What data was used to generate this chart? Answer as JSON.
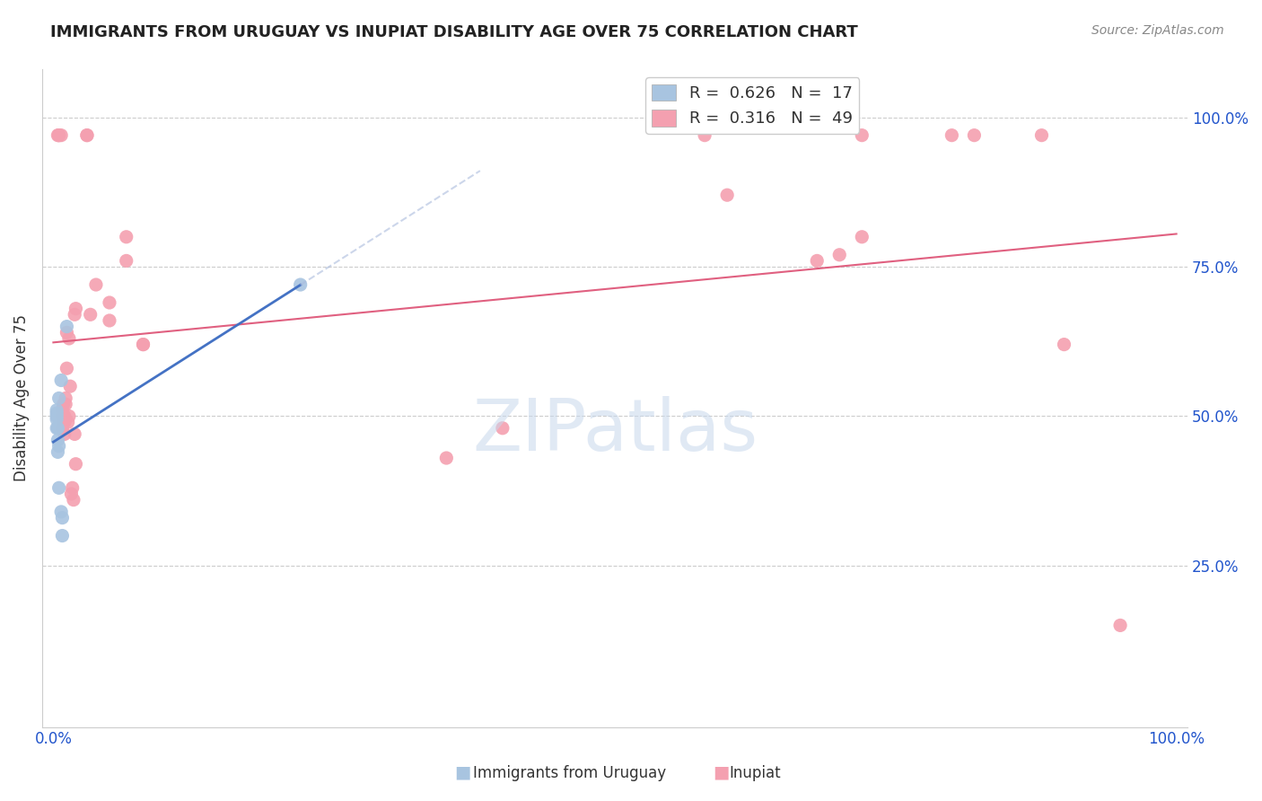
{
  "title": "IMMIGRANTS FROM URUGUAY VS INUPIAT DISABILITY AGE OVER 75 CORRELATION CHART",
  "source": "Source: ZipAtlas.com",
  "ylabel": "Disability Age Over 75",
  "R_blue": 0.626,
  "N_blue": 17,
  "R_pink": 0.316,
  "N_pink": 49,
  "color_blue": "#a8c4e0",
  "color_pink": "#f4a0b0",
  "line_blue": "#4472c4",
  "line_pink": "#e06080",
  "blue_scatter_x": [
    0.003,
    0.003,
    0.003,
    0.003,
    0.003,
    0.004,
    0.004,
    0.004,
    0.005,
    0.005,
    0.005,
    0.007,
    0.007,
    0.008,
    0.008,
    0.012,
    0.22
  ],
  "blue_scatter_y": [
    0.48,
    0.495,
    0.5,
    0.505,
    0.51,
    0.44,
    0.46,
    0.48,
    0.38,
    0.45,
    0.53,
    0.34,
    0.56,
    0.3,
    0.33,
    0.65,
    0.72
  ],
  "pink_scatter_x": [
    0.004,
    0.005,
    0.005,
    0.007,
    0.008,
    0.008,
    0.008,
    0.009,
    0.01,
    0.01,
    0.01,
    0.011,
    0.011,
    0.012,
    0.012,
    0.013,
    0.014,
    0.014,
    0.015,
    0.016,
    0.017,
    0.018,
    0.019,
    0.019,
    0.02,
    0.02,
    0.03,
    0.03,
    0.033,
    0.038,
    0.05,
    0.05,
    0.065,
    0.065,
    0.08,
    0.08,
    0.35,
    0.4,
    0.58,
    0.6,
    0.68,
    0.7,
    0.72,
    0.72,
    0.8,
    0.82,
    0.88,
    0.9,
    0.95
  ],
  "pink_scatter_y": [
    0.97,
    0.97,
    0.97,
    0.97,
    0.48,
    0.5,
    0.51,
    0.52,
    0.47,
    0.49,
    0.5,
    0.52,
    0.53,
    0.58,
    0.64,
    0.49,
    0.5,
    0.63,
    0.55,
    0.37,
    0.38,
    0.36,
    0.47,
    0.67,
    0.42,
    0.68,
    0.97,
    0.97,
    0.67,
    0.72,
    0.66,
    0.69,
    0.76,
    0.8,
    0.62,
    0.62,
    0.43,
    0.48,
    0.97,
    0.87,
    0.76,
    0.77,
    0.8,
    0.97,
    0.97,
    0.97,
    0.97,
    0.62,
    0.15
  ]
}
